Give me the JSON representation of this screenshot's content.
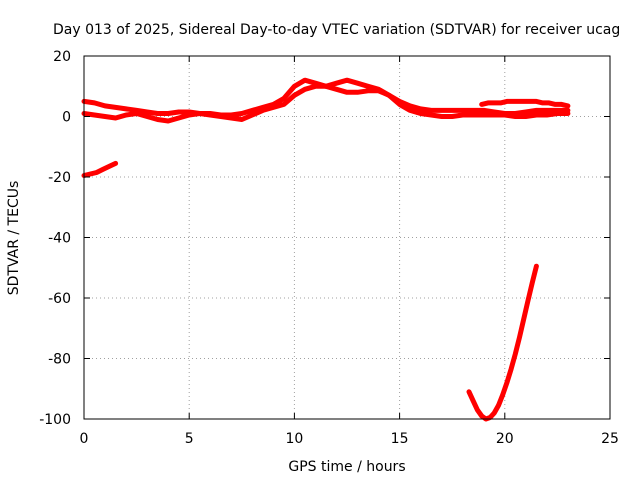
{
  "chart_data": {
    "type": "scatter",
    "title": "Day 013 of 2025, Sidereal Day-to-day VTEC variation (SDTVAR) for receiver ucag",
    "xlabel": "GPS time / hours",
    "ylabel": "SDTVAR / TECUs",
    "xlim": [
      0,
      25
    ],
    "ylim": [
      -100,
      20
    ],
    "x_ticks": [
      0,
      5,
      10,
      15,
      20,
      25
    ],
    "y_ticks": [
      -100,
      -80,
      -60,
      -40,
      -20,
      0,
      20
    ],
    "grid": true,
    "legend": "none",
    "color": "#ff0000",
    "series": [
      {
        "x": [
          0,
          0.5,
          1,
          1.5,
          2,
          2.5,
          3,
          3.5,
          4,
          4.5,
          5,
          5.5,
          6,
          6.5,
          7,
          7.5,
          8,
          8.5,
          9,
          9.5,
          10,
          10.5,
          11,
          11.5,
          12,
          12.5,
          13,
          13.5,
          14,
          14.5,
          15,
          15.5,
          16,
          16.5,
          17,
          17.5,
          18,
          18.5,
          19,
          19.5,
          20,
          20.5,
          21,
          21.5,
          22,
          22.5,
          23
        ],
        "y": [
          1,
          0.5,
          0,
          -0.5,
          0.5,
          1,
          0,
          -1,
          -1.5,
          -0.5,
          0.5,
          1,
          0.5,
          0,
          -0.5,
          -1,
          0.5,
          2,
          3,
          4,
          7,
          9,
          10,
          10,
          9,
          8,
          8,
          8.5,
          8.5,
          7,
          4,
          2,
          1,
          0.5,
          0,
          0,
          0.5,
          0.5,
          0.5,
          0.5,
          0.5,
          0,
          0,
          0.5,
          0.5,
          1,
          1
        ]
      },
      {
        "x": [
          0,
          0.5,
          1,
          1.5,
          2,
          2.5,
          3,
          3.5,
          4,
          4.5,
          5,
          5.5,
          6,
          6.5,
          7,
          7.5,
          8,
          8.5,
          9,
          9.5,
          10,
          10.5,
          11,
          11.5,
          12,
          12.5,
          13,
          13.5,
          14,
          14.5,
          15,
          15.5,
          16,
          16.5,
          17,
          17.5,
          18,
          18.5,
          19,
          19.5,
          20,
          20.5,
          21,
          21.5,
          22,
          22.5,
          23
        ],
        "y": [
          5,
          4.5,
          3.5,
          3,
          2.5,
          2,
          1.5,
          1,
          1,
          1.5,
          1.5,
          1,
          1,
          0.5,
          0.5,
          1,
          2,
          3,
          4,
          6,
          10,
          12,
          11,
          10,
          11,
          12,
          11,
          10,
          9,
          7,
          5,
          3.5,
          2.5,
          2,
          2,
          2,
          2,
          2,
          2,
          1.5,
          1,
          1,
          1.5,
          2,
          2,
          2,
          2
        ]
      },
      {
        "x": [
          18.9,
          19.2,
          19.5,
          19.8,
          20.1,
          20.4,
          20.7,
          21,
          21.3,
          21.5,
          21.8,
          22.1,
          22.4,
          22.7,
          23
        ],
        "y": [
          4,
          4.5,
          4.5,
          4.5,
          5,
          5,
          5,
          5,
          5,
          5,
          4.5,
          4.5,
          4,
          4,
          3.5
        ]
      },
      {
        "x": [
          0,
          0.3,
          0.6,
          0.9,
          1.2,
          1.5
        ],
        "y": [
          -19.5,
          -19,
          -18.5,
          -17.5,
          -16.5,
          -15.5
        ]
      },
      {
        "x": [
          18.3,
          18.5,
          18.7,
          18.9,
          19.1,
          19.3,
          19.5,
          19.7,
          19.9,
          20.1,
          20.3,
          20.5,
          20.7,
          20.9,
          21.1,
          21.3,
          21.5
        ],
        "y": [
          -91,
          -94,
          -97,
          -99,
          -100,
          -99.5,
          -98,
          -95.5,
          -92,
          -88,
          -83.5,
          -78.5,
          -73,
          -67,
          -61,
          -55,
          -49.5
        ]
      }
    ]
  }
}
